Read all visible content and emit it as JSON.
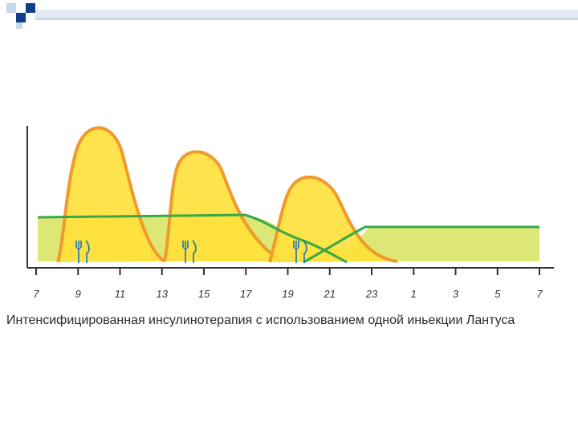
{
  "chart_data": {
    "type": "area",
    "x_ticks": [
      "7",
      "9",
      "11",
      "13",
      "15",
      "17",
      "19",
      "21",
      "23",
      "1",
      "3",
      "5",
      "7"
    ],
    "meal_icon": "fork-and-knife-icon",
    "meals_at": [
      "9",
      "15",
      "19"
    ]
  },
  "caption": "Интенсифицированная инсулинотерапия с использованием одной иньекции Лантуса",
  "colors": {
    "basal_fill": "#dde776",
    "basal_line": "#37a84a",
    "bolus_fill": "#ffe03a",
    "bolus_line": "#f19a2c",
    "icon_blue": "#1a73b5",
    "deco_blue": "#0f3f8a",
    "deco_light": "#c9d6ea"
  }
}
